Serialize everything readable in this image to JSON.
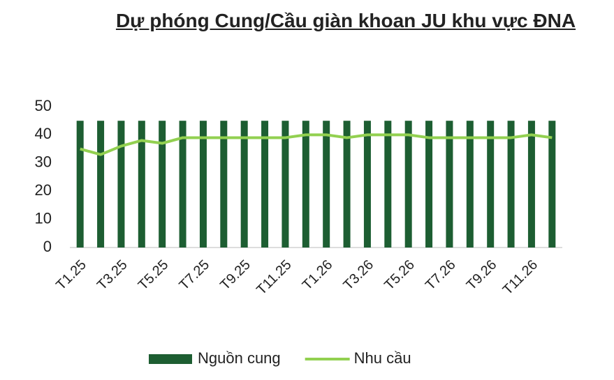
{
  "chart_data": {
    "type": "bar",
    "title": "Dự phóng Cung/Cầu giàn khoan JU khu vực ĐNA",
    "categories": [
      "T1.25",
      null,
      "T3.25",
      null,
      "T5.25",
      null,
      "T7.25",
      null,
      "T9.25",
      null,
      "T11.25",
      null,
      "T1.26",
      null,
      "T3.26",
      null,
      "T5.26",
      null,
      "T7.26",
      null,
      "T9.26",
      null,
      "T11.26",
      null
    ],
    "series": [
      {
        "name": "Nguồn cung",
        "type": "bar",
        "color": "#1d5e32",
        "values": [
          45,
          45,
          45,
          45,
          45,
          45,
          45,
          45,
          45,
          45,
          45,
          45,
          45,
          45,
          45,
          45,
          45,
          45,
          45,
          45,
          45,
          45,
          45,
          45
        ]
      },
      {
        "name": "Nhu cầu",
        "type": "line",
        "color": "#92d050",
        "values": [
          35,
          33,
          36,
          38,
          37,
          39,
          39,
          39,
          39,
          39,
          39,
          40,
          40,
          39,
          40,
          40,
          40,
          39,
          39,
          39,
          39,
          39,
          40,
          39
        ]
      }
    ],
    "ylim": [
      0,
      50
    ],
    "yticks": [
      0,
      10,
      20,
      30,
      40,
      50
    ],
    "grid": false,
    "legend": "bottom"
  }
}
